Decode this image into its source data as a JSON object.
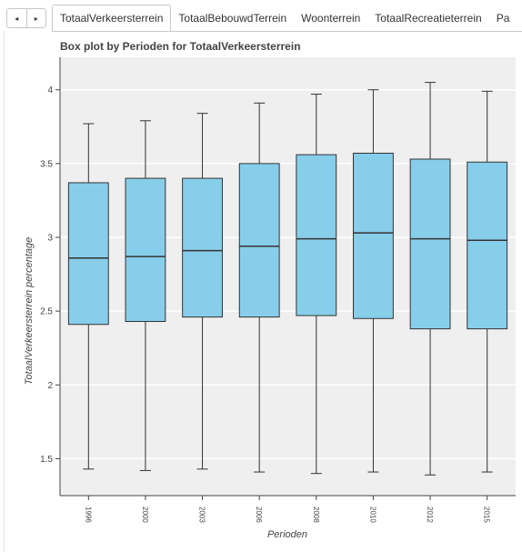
{
  "tabs": {
    "prev_icon": "◂",
    "next_icon": "▸",
    "items": [
      {
        "label": "TotaalVerkeersterrein",
        "active": true
      },
      {
        "label": "TotaalBebouwdTerrein",
        "active": false
      },
      {
        "label": "Woonterrein",
        "active": false
      },
      {
        "label": "TotaalRecreatieterrein",
        "active": false
      },
      {
        "label": "Pa",
        "active": false
      }
    ]
  },
  "chart_data": {
    "type": "box",
    "title": "Box plot by Perioden for TotaalVerkeersterrein",
    "xlabel": "Perioden",
    "ylabel": "TotaalVerkeersterrein percentage",
    "categories": [
      "1996",
      "2000",
      "2003",
      "2006",
      "2008",
      "2010",
      "2012",
      "2015"
    ],
    "boxes": [
      {
        "min": 1.43,
        "q1": 2.41,
        "median": 2.86,
        "q3": 3.37,
        "max": 3.77
      },
      {
        "min": 1.42,
        "q1": 2.43,
        "median": 2.87,
        "q3": 3.4,
        "max": 3.79
      },
      {
        "min": 1.43,
        "q1": 2.46,
        "median": 2.91,
        "q3": 3.4,
        "max": 3.84
      },
      {
        "min": 1.41,
        "q1": 2.46,
        "median": 2.94,
        "q3": 3.5,
        "max": 3.91
      },
      {
        "min": 1.4,
        "q1": 2.47,
        "median": 2.99,
        "q3": 3.56,
        "max": 3.97
      },
      {
        "min": 1.41,
        "q1": 2.45,
        "median": 3.03,
        "q3": 3.57,
        "max": 4.0
      },
      {
        "min": 1.39,
        "q1": 2.38,
        "median": 2.99,
        "q3": 3.53,
        "max": 4.05
      },
      {
        "min": 1.41,
        "q1": 2.38,
        "median": 2.98,
        "q3": 3.51,
        "max": 3.99
      }
    ],
    "yticks": [
      1.5,
      2,
      2.5,
      3,
      3.5,
      4
    ],
    "ytick_labels": [
      "1.5",
      "2",
      "2.5",
      "3",
      "3.5",
      "4"
    ],
    "ylim": [
      1.25,
      4.22
    ],
    "grid": true,
    "colors": {
      "box_fill": "#87ceeb",
      "box_stroke": "#333333",
      "plot_background": "#efefef",
      "grid": "#ffffff"
    }
  }
}
